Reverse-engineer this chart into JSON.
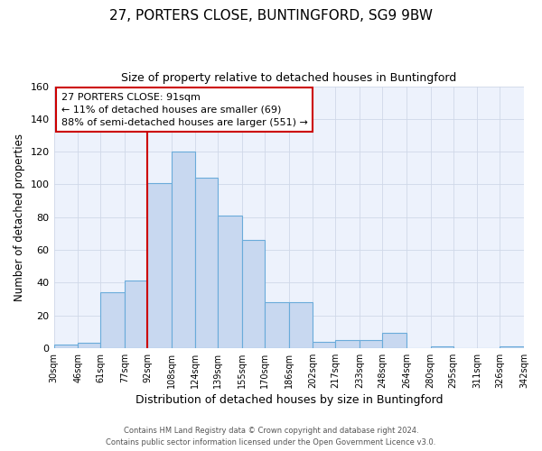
{
  "title_line1": "27, PORTERS CLOSE, BUNTINGFORD, SG9 9BW",
  "title_line2": "Size of property relative to detached houses in Buntingford",
  "xlabel": "Distribution of detached houses by size in Buntingford",
  "ylabel": "Number of detached properties",
  "bar_color": "#c8d8f0",
  "bar_edge_color": "#6aabda",
  "grid_color": "#d0d8e8",
  "background_color": "#edf2fc",
  "bins": [
    30,
    46,
    61,
    77,
    92,
    108,
    124,
    139,
    155,
    170,
    186,
    202,
    217,
    233,
    248,
    264,
    280,
    295,
    311,
    326,
    342
  ],
  "counts": [
    2,
    3,
    34,
    41,
    101,
    120,
    104,
    81,
    66,
    28,
    28,
    4,
    5,
    5,
    9,
    0,
    1,
    0,
    0,
    1
  ],
  "tick_labels": [
    "30sqm",
    "46sqm",
    "61sqm",
    "77sqm",
    "92sqm",
    "108sqm",
    "124sqm",
    "139sqm",
    "155sqm",
    "170sqm",
    "186sqm",
    "202sqm",
    "217sqm",
    "233sqm",
    "248sqm",
    "264sqm",
    "280sqm",
    "295sqm",
    "311sqm",
    "326sqm",
    "342sqm"
  ],
  "vline_x": 92,
  "vline_color": "#cc0000",
  "annotation_text": "27 PORTERS CLOSE: 91sqm\n← 11% of detached houses are smaller (69)\n88% of semi-detached houses are larger (551) →",
  "annotation_box_color": "#ffffff",
  "annotation_box_edge": "#cc0000",
  "ylim": [
    0,
    160
  ],
  "yticks": [
    0,
    20,
    40,
    60,
    80,
    100,
    120,
    140,
    160
  ],
  "footer_line1": "Contains HM Land Registry data © Crown copyright and database right 2024.",
  "footer_line2": "Contains public sector information licensed under the Open Government Licence v3.0."
}
